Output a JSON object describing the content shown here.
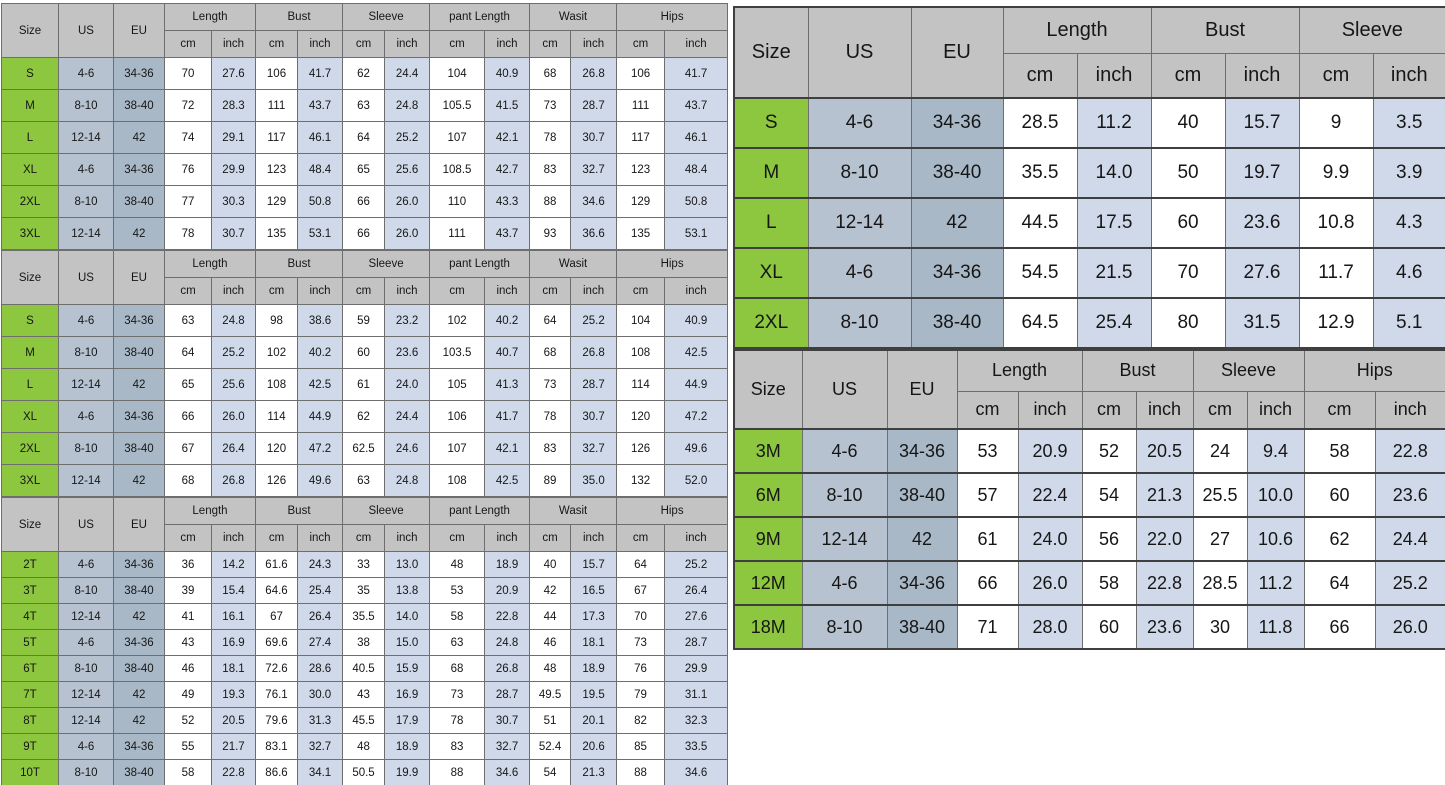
{
  "palette": {
    "header-bg": "#c3c3c3",
    "size-bg": "#8dc63f",
    "us-bg": "#b6c2cf",
    "eu-bg": "#a9b8c7",
    "cm-bg": "#ffffff",
    "inch-bg": "#d0d9e9",
    "grid": "#6e6e6e",
    "grid-strong": "#3f3f3f",
    "text": "#161616"
  },
  "labels": {
    "size": "Size",
    "us": "US",
    "eu": "EU",
    "cm": "cm",
    "inch": "inch"
  },
  "tables": [
    {
      "id": "women-pants-chart-1",
      "groups": [
        "Length",
        "Bust",
        "Sleeve",
        "pant Length",
        "Wasit",
        "Hips"
      ],
      "rows": [
        {
          "size": "S",
          "us": "4-6",
          "eu": "34-36",
          "values": [
            "70",
            "27.6",
            "106",
            "41.7",
            "62",
            "24.4",
            "104",
            "40.9",
            "68",
            "26.8",
            "106",
            "41.7"
          ]
        },
        {
          "size": "M",
          "us": "8-10",
          "eu": "38-40",
          "values": [
            "72",
            "28.3",
            "111",
            "43.7",
            "63",
            "24.8",
            "105.5",
            "41.5",
            "73",
            "28.7",
            "111",
            "43.7"
          ]
        },
        {
          "size": "L",
          "us": "12-14",
          "eu": "42",
          "values": [
            "74",
            "29.1",
            "117",
            "46.1",
            "64",
            "25.2",
            "107",
            "42.1",
            "78",
            "30.7",
            "117",
            "46.1"
          ]
        },
        {
          "size": "XL",
          "us": "4-6",
          "eu": "34-36",
          "values": [
            "76",
            "29.9",
            "123",
            "48.4",
            "65",
            "25.6",
            "108.5",
            "42.7",
            "83",
            "32.7",
            "123",
            "48.4"
          ]
        },
        {
          "size": "2XL",
          "us": "8-10",
          "eu": "38-40",
          "values": [
            "77",
            "30.3",
            "129",
            "50.8",
            "66",
            "26.0",
            "110",
            "43.3",
            "88",
            "34.6",
            "129",
            "50.8"
          ]
        },
        {
          "size": "3XL",
          "us": "12-14",
          "eu": "42",
          "values": [
            "78",
            "30.7",
            "135",
            "53.1",
            "66",
            "26.0",
            "111",
            "43.7",
            "93",
            "36.6",
            "135",
            "53.1"
          ]
        }
      ]
    },
    {
      "id": "women-pants-chart-2",
      "groups": [
        "Length",
        "Bust",
        "Sleeve",
        "pant Length",
        "Wasit",
        "Hips"
      ],
      "rows": [
        {
          "size": "S",
          "us": "4-6",
          "eu": "34-36",
          "values": [
            "63",
            "24.8",
            "98",
            "38.6",
            "59",
            "23.2",
            "102",
            "40.2",
            "64",
            "25.2",
            "104",
            "40.9"
          ]
        },
        {
          "size": "M",
          "us": "8-10",
          "eu": "38-40",
          "values": [
            "64",
            "25.2",
            "102",
            "40.2",
            "60",
            "23.6",
            "103.5",
            "40.7",
            "68",
            "26.8",
            "108",
            "42.5"
          ]
        },
        {
          "size": "L",
          "us": "12-14",
          "eu": "42",
          "values": [
            "65",
            "25.6",
            "108",
            "42.5",
            "61",
            "24.0",
            "105",
            "41.3",
            "73",
            "28.7",
            "114",
            "44.9"
          ]
        },
        {
          "size": "XL",
          "us": "4-6",
          "eu": "34-36",
          "values": [
            "66",
            "26.0",
            "114",
            "44.9",
            "62",
            "24.4",
            "106",
            "41.7",
            "78",
            "30.7",
            "120",
            "47.2"
          ]
        },
        {
          "size": "2XL",
          "us": "8-10",
          "eu": "38-40",
          "values": [
            "67",
            "26.4",
            "120",
            "47.2",
            "62.5",
            "24.6",
            "107",
            "42.1",
            "83",
            "32.7",
            "126",
            "49.6"
          ]
        },
        {
          "size": "3XL",
          "us": "12-14",
          "eu": "42",
          "values": [
            "68",
            "26.8",
            "126",
            "49.6",
            "63",
            "24.8",
            "108",
            "42.5",
            "89",
            "35.0",
            "132",
            "52.0"
          ]
        }
      ]
    },
    {
      "id": "toddler-chart",
      "groups": [
        "Length",
        "Bust",
        "Sleeve",
        "pant Length",
        "Wasit",
        "Hips"
      ],
      "rows": [
        {
          "size": "2T",
          "us": "4-6",
          "eu": "34-36",
          "values": [
            "36",
            "14.2",
            "61.6",
            "24.3",
            "33",
            "13.0",
            "48",
            "18.9",
            "40",
            "15.7",
            "64",
            "25.2"
          ]
        },
        {
          "size": "3T",
          "us": "8-10",
          "eu": "38-40",
          "values": [
            "39",
            "15.4",
            "64.6",
            "25.4",
            "35",
            "13.8",
            "53",
            "20.9",
            "42",
            "16.5",
            "67",
            "26.4"
          ]
        },
        {
          "size": "4T",
          "us": "12-14",
          "eu": "42",
          "values": [
            "41",
            "16.1",
            "67",
            "26.4",
            "35.5",
            "14.0",
            "58",
            "22.8",
            "44",
            "17.3",
            "70",
            "27.6"
          ]
        },
        {
          "size": "5T",
          "us": "4-6",
          "eu": "34-36",
          "values": [
            "43",
            "16.9",
            "69.6",
            "27.4",
            "38",
            "15.0",
            "63",
            "24.8",
            "46",
            "18.1",
            "73",
            "28.7"
          ]
        },
        {
          "size": "6T",
          "us": "8-10",
          "eu": "38-40",
          "values": [
            "46",
            "18.1",
            "72.6",
            "28.6",
            "40.5",
            "15.9",
            "68",
            "26.8",
            "48",
            "18.9",
            "76",
            "29.9"
          ]
        },
        {
          "size": "7T",
          "us": "12-14",
          "eu": "42",
          "values": [
            "49",
            "19.3",
            "76.1",
            "30.0",
            "43",
            "16.9",
            "73",
            "28.7",
            "49.5",
            "19.5",
            "79",
            "31.1"
          ]
        },
        {
          "size": "8T",
          "us": "12-14",
          "eu": "42",
          "values": [
            "52",
            "20.5",
            "79.6",
            "31.3",
            "45.5",
            "17.9",
            "78",
            "30.7",
            "51",
            "20.1",
            "82",
            "32.3"
          ]
        },
        {
          "size": "9T",
          "us": "4-6",
          "eu": "34-36",
          "values": [
            "55",
            "21.7",
            "83.1",
            "32.7",
            "48",
            "18.9",
            "83",
            "32.7",
            "52.4",
            "20.6",
            "85",
            "33.5"
          ]
        },
        {
          "size": "10T",
          "us": "8-10",
          "eu": "38-40",
          "values": [
            "58",
            "22.8",
            "86.6",
            "34.1",
            "50.5",
            "19.9",
            "88",
            "34.6",
            "54",
            "21.3",
            "88",
            "34.6"
          ]
        }
      ]
    },
    {
      "id": "women-top-chart",
      "groups": [
        "Length",
        "Bust",
        "Sleeve"
      ],
      "rows": [
        {
          "size": "S",
          "us": "4-6",
          "eu": "34-36",
          "values": [
            "28.5",
            "11.2",
            "40",
            "15.7",
            "9",
            "3.5"
          ]
        },
        {
          "size": "M",
          "us": "8-10",
          "eu": "38-40",
          "values": [
            "35.5",
            "14.0",
            "50",
            "19.7",
            "9.9",
            "3.9"
          ]
        },
        {
          "size": "L",
          "us": "12-14",
          "eu": "42",
          "values": [
            "44.5",
            "17.5",
            "60",
            "23.6",
            "10.8",
            "4.3"
          ]
        },
        {
          "size": "XL",
          "us": "4-6",
          "eu": "34-36",
          "values": [
            "54.5",
            "21.5",
            "70",
            "27.6",
            "11.7",
            "4.6"
          ]
        },
        {
          "size": "2XL",
          "us": "8-10",
          "eu": "38-40",
          "values": [
            "64.5",
            "25.4",
            "80",
            "31.5",
            "12.9",
            "5.1"
          ]
        }
      ]
    },
    {
      "id": "baby-months-chart",
      "groups": [
        "Length",
        "Bust",
        "Sleeve",
        "Hips"
      ],
      "rows": [
        {
          "size": "3M",
          "us": "4-6",
          "eu": "34-36",
          "values": [
            "53",
            "20.9",
            "52",
            "20.5",
            "24",
            "9.4",
            "58",
            "22.8"
          ]
        },
        {
          "size": "6M",
          "us": "8-10",
          "eu": "38-40",
          "values": [
            "57",
            "22.4",
            "54",
            "21.3",
            "25.5",
            "10.0",
            "60",
            "23.6"
          ]
        },
        {
          "size": "9M",
          "us": "12-14",
          "eu": "42",
          "values": [
            "61",
            "24.0",
            "56",
            "22.0",
            "27",
            "10.6",
            "62",
            "24.4"
          ]
        },
        {
          "size": "12M",
          "us": "4-6",
          "eu": "34-36",
          "values": [
            "66",
            "26.0",
            "58",
            "22.8",
            "28.5",
            "11.2",
            "64",
            "25.2"
          ]
        },
        {
          "size": "18M",
          "us": "8-10",
          "eu": "38-40",
          "values": [
            "71",
            "28.0",
            "60",
            "23.6",
            "30",
            "11.8",
            "66",
            "26.0"
          ]
        }
      ]
    }
  ]
}
